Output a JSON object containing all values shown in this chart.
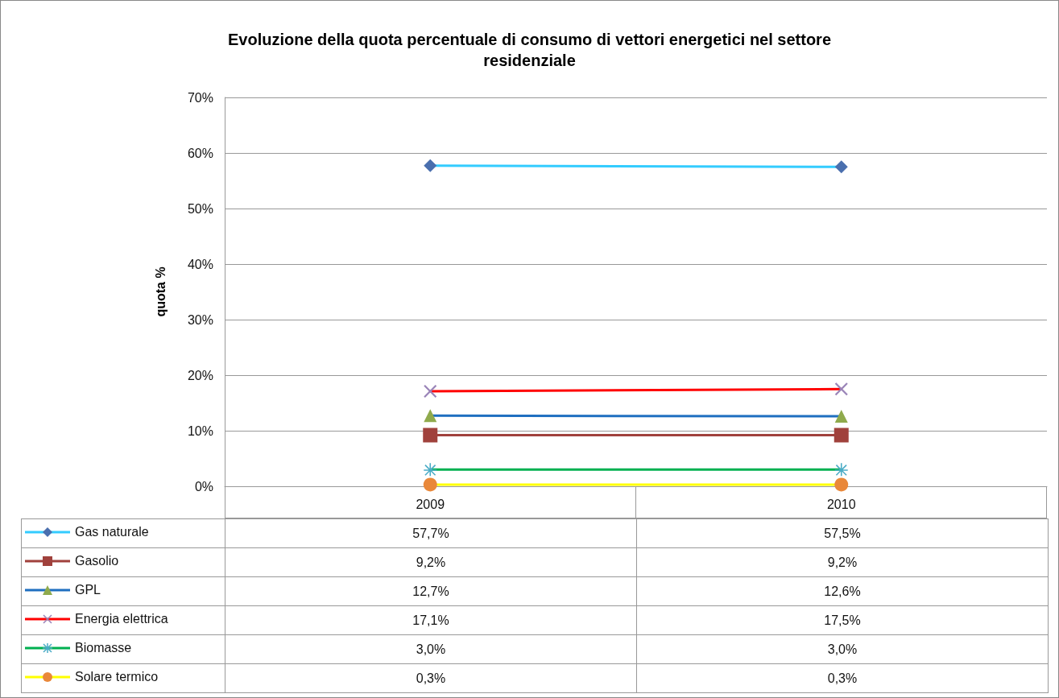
{
  "chart_data": {
    "type": "line",
    "title": "Evoluzione della quota percentuale di consumo di vettori energetici nel settore\nresidenziale",
    "ylabel": "quota %",
    "categories": [
      "2009",
      "2010"
    ],
    "series": [
      {
        "name": "Gas naturale",
        "color": "#33ccff",
        "colors": [
          "#4a6fae",
          "#4a6fae"
        ],
        "marker": "diamond",
        "values": [
          57.7,
          57.5
        ],
        "value_labels": [
          "57,7%",
          "57,5%"
        ]
      },
      {
        "name": "Gasolio",
        "color": "#a0413c",
        "colors": [
          "#a0413c",
          "#a0413c"
        ],
        "marker": "square",
        "values": [
          9.2,
          9.2
        ],
        "value_labels": [
          "9,2%",
          "9,2%"
        ]
      },
      {
        "name": "GPL",
        "color": "#1f6fc0",
        "colors": [
          "#8faa4c",
          "#8faa4c"
        ],
        "marker": "triangle",
        "values": [
          12.7,
          12.6
        ],
        "value_labels": [
          "12,7%",
          "12,6%"
        ]
      },
      {
        "name": "Energia elettrica",
        "color": "#ff0000",
        "colors": [
          "#9a84b8",
          "#9a84b8"
        ],
        "marker": "cross",
        "values": [
          17.1,
          17.5
        ],
        "value_labels": [
          "17,1%",
          "17,5%"
        ]
      },
      {
        "name": "Biomasse",
        "color": "#00b050",
        "colors": [
          "#4bacc6",
          "#4bacc6"
        ],
        "marker": "star",
        "values": [
          3.0,
          3.0
        ],
        "value_labels": [
          "3,0%",
          "3,0%"
        ]
      },
      {
        "name": "Solare termico",
        "color": "#ffff00",
        "colors": [
          "#e9883a",
          "#e9883a"
        ],
        "marker": "circle",
        "values": [
          0.3,
          0.3
        ],
        "value_labels": [
          "0,3%",
          "0,3%"
        ]
      }
    ],
    "ylim": [
      0,
      70
    ],
    "yticks": [
      {
        "value": 0,
        "label": "0%"
      },
      {
        "value": 10,
        "label": "10%"
      },
      {
        "value": 20,
        "label": "20%"
      },
      {
        "value": 30,
        "label": "30%"
      },
      {
        "value": 40,
        "label": "40%"
      },
      {
        "value": 50,
        "label": "50%"
      },
      {
        "value": 60,
        "label": "60%"
      },
      {
        "value": 70,
        "label": "70%"
      }
    ],
    "grid": "y",
    "legend": "bottom left",
    "line_style": "solid"
  }
}
